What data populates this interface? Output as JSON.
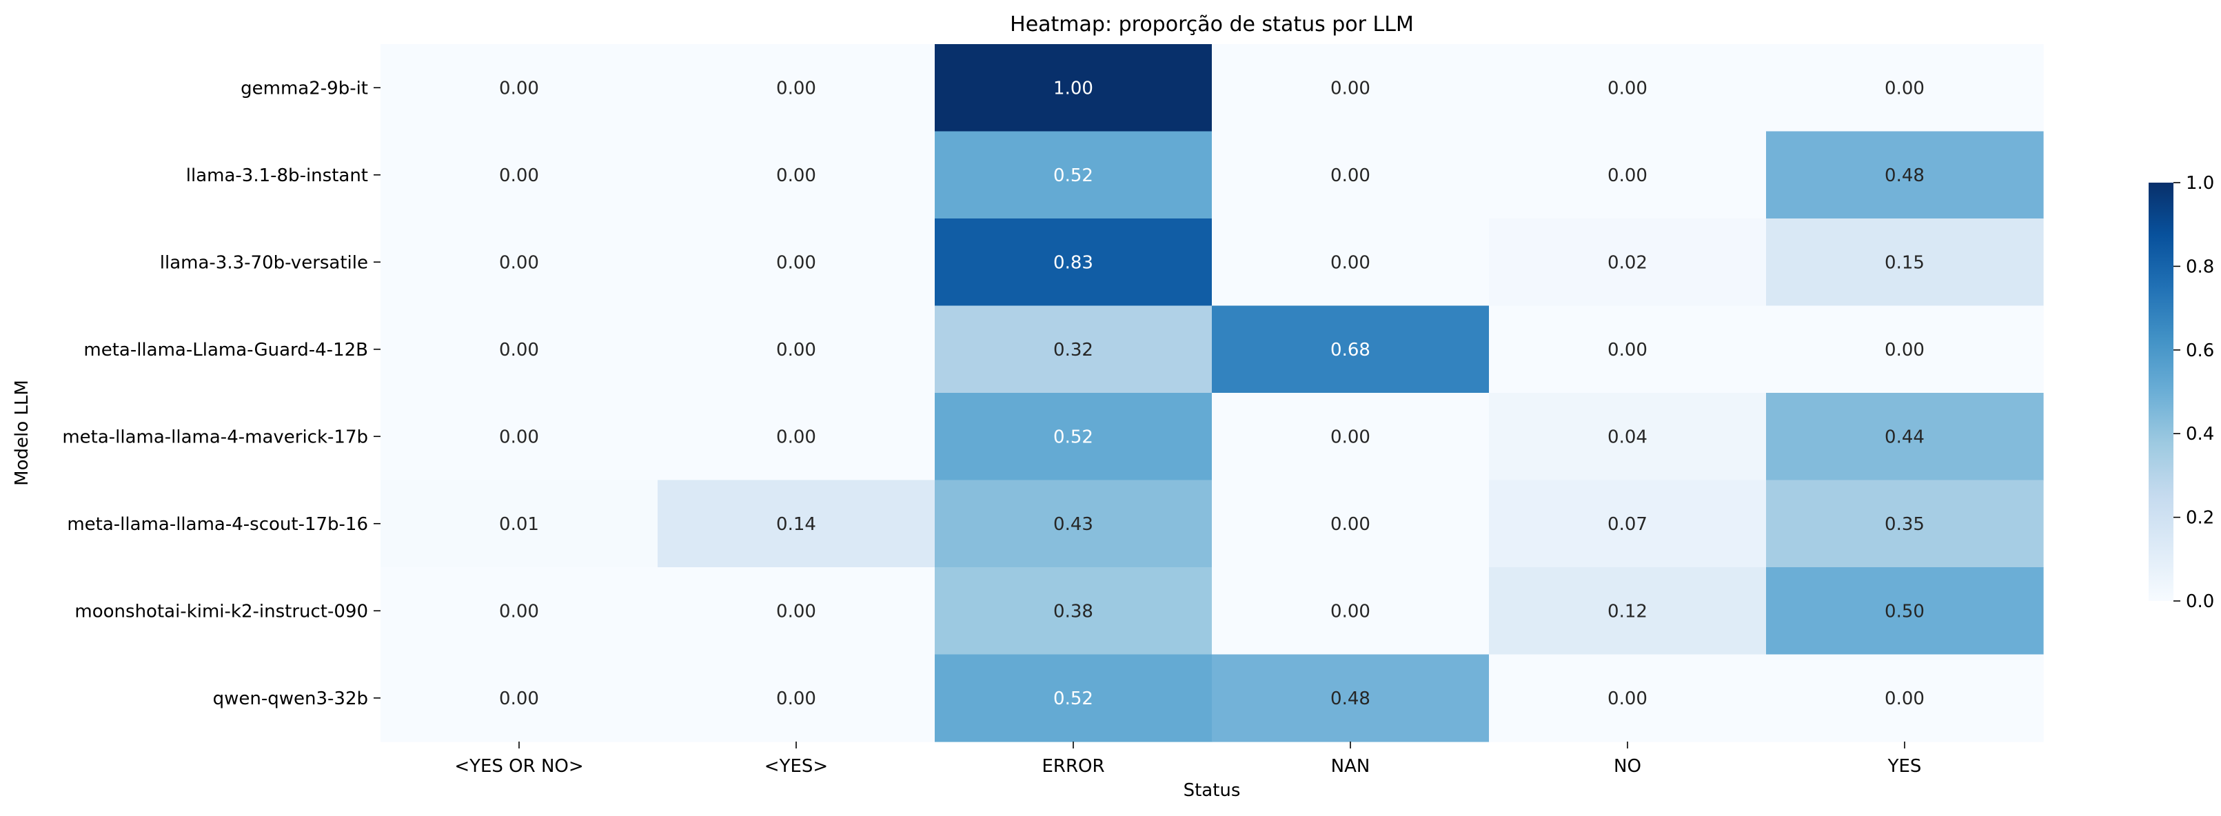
{
  "chart_data": {
    "type": "heatmap",
    "title": "Heatmap: proporção de status por LLM",
    "xlabel": "Status",
    "ylabel": "Modelo LLM",
    "x_categories": [
      "<YES OR NO>",
      "<YES>",
      "ERROR",
      "NAN",
      "NO",
      "YES"
    ],
    "y_categories": [
      "gemma2-9b-it",
      "llama-3.1-8b-instant",
      "llama-3.3-70b-versatile",
      "meta-llama-Llama-Guard-4-12B",
      "meta-llama-llama-4-maverick-17b",
      "meta-llama-llama-4-scout-17b-16",
      "moonshotai-kimi-k2-instruct-090",
      "qwen-qwen3-32b"
    ],
    "values": [
      [
        0.0,
        0.0,
        1.0,
        0.0,
        0.0,
        0.0
      ],
      [
        0.0,
        0.0,
        0.52,
        0.0,
        0.0,
        0.48
      ],
      [
        0.0,
        0.0,
        0.83,
        0.0,
        0.02,
        0.15
      ],
      [
        0.0,
        0.0,
        0.32,
        0.68,
        0.0,
        0.0
      ],
      [
        0.0,
        0.0,
        0.52,
        0.0,
        0.04,
        0.44
      ],
      [
        0.01,
        0.14,
        0.43,
        0.0,
        0.07,
        0.35
      ],
      [
        0.0,
        0.0,
        0.38,
        0.0,
        0.12,
        0.5
      ],
      [
        0.0,
        0.0,
        0.52,
        0.48,
        0.0,
        0.0
      ]
    ],
    "value_format": "0.00",
    "colormap": "Blues",
    "color_range": [
      0.0,
      1.0
    ],
    "colorbar_ticks": [
      "0.0",
      "0.2",
      "0.4",
      "0.6",
      "0.8",
      "1.0"
    ],
    "grid": false,
    "legend": "colorbar-right"
  }
}
